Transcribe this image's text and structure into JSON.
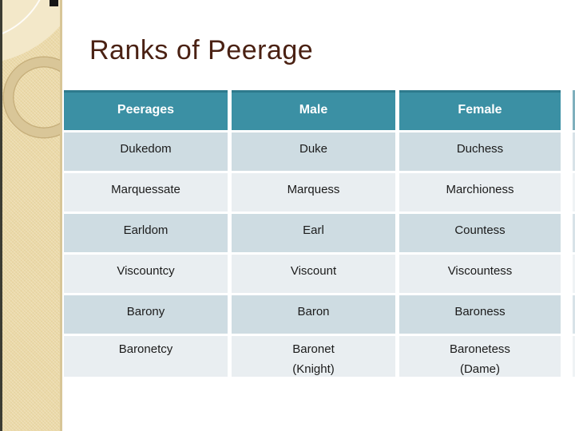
{
  "slide": {
    "title": "Ranks of Peerage"
  },
  "table": {
    "headers": [
      "Peerages",
      "Male",
      "Female"
    ],
    "rows": [
      [
        "Dukedom",
        "Duke",
        "Duchess"
      ],
      [
        "Marquessate",
        "Marquess",
        "Marchioness"
      ],
      [
        "Earldom",
        "Earl",
        "Countess"
      ],
      [
        "Viscountcy",
        "Viscount",
        "Viscountess"
      ],
      [
        "Barony",
        "Baron",
        "Baroness"
      ],
      [
        "Baronetcy",
        "Baronet\n(Knight)",
        "Baronetess\n(Dame)"
      ]
    ]
  },
  "colors": {
    "header_bg": "#3B90A4",
    "header_top_edge": "#2E7A8D",
    "row_odd_bg": "#CEDCE2",
    "row_even_bg": "#E9EEF1",
    "title_text": "#4A2113",
    "sidebar_bg": "#EBD9A8",
    "sidebar_ring": "#D9C698",
    "edge_line": "#3C3C33"
  }
}
